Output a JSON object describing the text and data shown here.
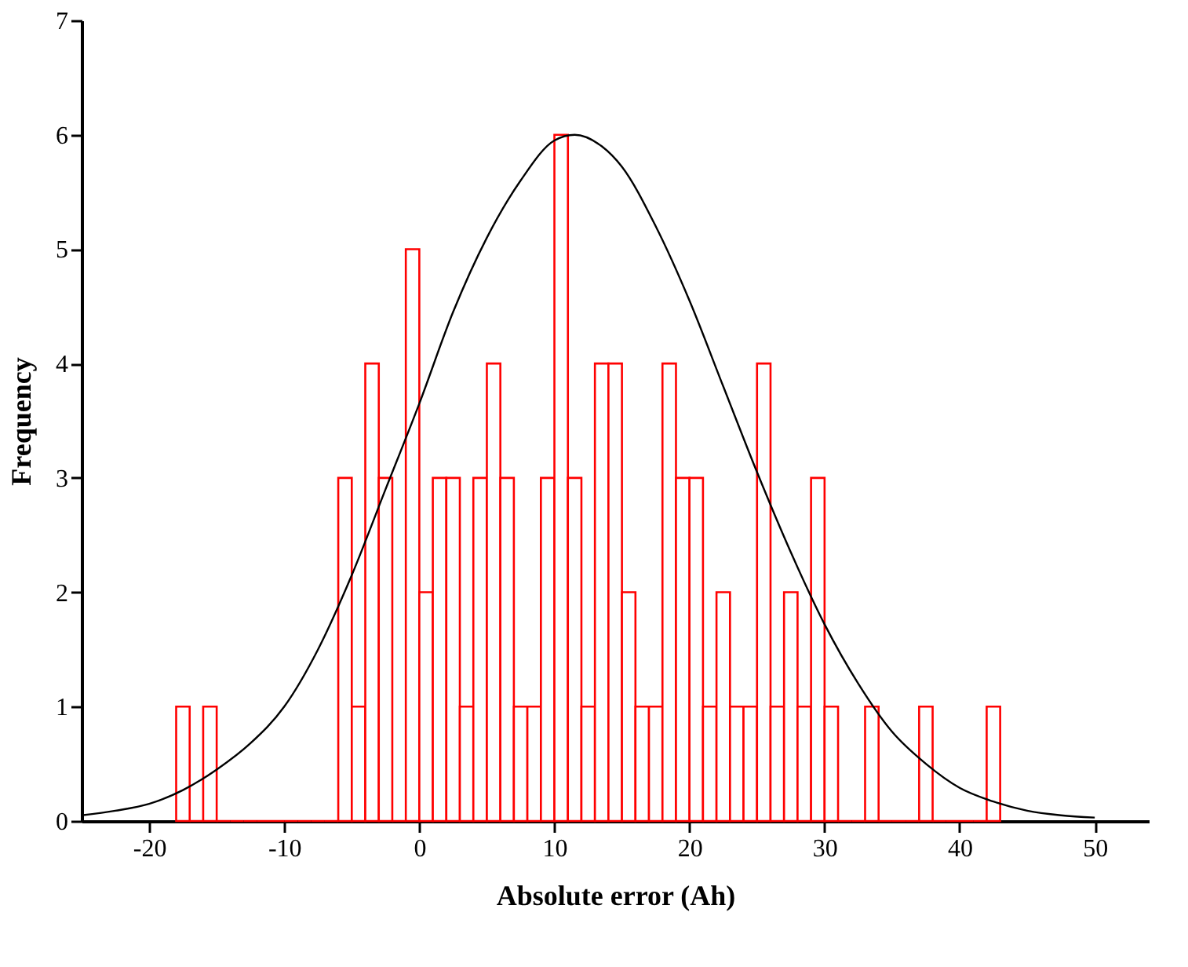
{
  "chart_data": {
    "type": "histogram",
    "xlabel": "Absolute error (Ah)",
    "ylabel": "Frequency",
    "bins": [
      -18,
      -17,
      -16,
      -15,
      -14,
      -13,
      -12,
      -11,
      -10,
      -9,
      -8,
      -7,
      -6,
      -5,
      -4,
      -3,
      -2,
      -1,
      0,
      1,
      2,
      3,
      4,
      5,
      6,
      7,
      8,
      9,
      10,
      11,
      12,
      13,
      14,
      15,
      16,
      17,
      18,
      19,
      20,
      21,
      22,
      23,
      24,
      25,
      26,
      27,
      28,
      29,
      30,
      31,
      32,
      33,
      34,
      35,
      36,
      37,
      38,
      39,
      40,
      41,
      42,
      43
    ],
    "values": [
      1,
      0,
      1,
      0,
      0,
      0,
      0,
      0,
      0,
      0,
      0,
      0,
      3,
      1,
      4,
      3,
      0,
      5,
      2,
      3,
      3,
      1,
      3,
      4,
      3,
      1,
      1,
      3,
      6,
      3,
      1,
      4,
      4,
      2,
      1,
      1,
      4,
      3,
      3,
      1,
      2,
      1,
      1,
      4,
      1,
      2,
      1,
      3,
      1,
      0,
      0,
      1,
      0,
      0,
      0,
      1,
      0,
      0,
      0,
      0,
      1
    ],
    "color": "#ff0000",
    "series": [
      {
        "type": "line",
        "color": "#000000",
        "x": [
          -25,
          -22.5,
          -20,
          -17.5,
          -15,
          -12.5,
          -10,
          -7.5,
          -5,
          -2.5,
          0,
          2.5,
          5,
          7.5,
          10,
          11.5,
          13.5,
          15,
          17.5,
          20,
          22.5,
          25,
          27.5,
          30,
          32.5,
          35,
          37.5,
          40,
          42.5,
          45,
          47.5,
          50
        ],
        "values": [
          0.05,
          0.09,
          0.15,
          0.27,
          0.45,
          0.68,
          1.0,
          1.5,
          2.15,
          2.9,
          3.65,
          4.45,
          5.1,
          5.6,
          5.95,
          6.0,
          5.9,
          5.72,
          5.2,
          4.55,
          3.8,
          3.05,
          2.35,
          1.72,
          1.2,
          0.78,
          0.5,
          0.29,
          0.17,
          0.09,
          0.05,
          0.03
        ]
      }
    ],
    "xlim": [
      -25,
      54
    ],
    "ylim": [
      0,
      7
    ],
    "xticks": [
      -20,
      -10,
      0,
      10,
      20,
      30,
      40,
      50
    ],
    "yticks": [
      0,
      1,
      2,
      3,
      4,
      5,
      6,
      7
    ]
  }
}
